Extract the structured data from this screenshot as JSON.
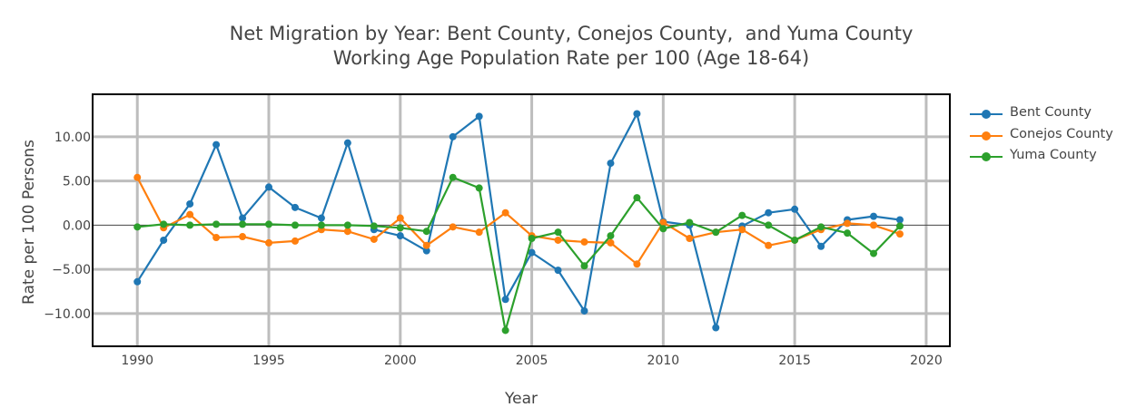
{
  "chart_data": {
    "type": "line",
    "title": "Net Migration by Year: Bent County, Conejos County,  and Yuma County",
    "subtitle": "Working Age Population Rate per 100 (Age 18-64)",
    "xlabel": "Year",
    "ylabel": "Rate per 100 Persons",
    "xlim": [
      1988.3,
      2020.9
    ],
    "ylim": [
      -13.7,
      14.8
    ],
    "xticks": [
      1990,
      1995,
      2000,
      2005,
      2010,
      2015,
      2020
    ],
    "xtick_labels": [
      "1990",
      "1995",
      "2000",
      "2005",
      "2010",
      "2015",
      "2020"
    ],
    "yticks": [
      10,
      5,
      0,
      -5,
      -10
    ],
    "ytick_labels": [
      "10.00",
      "5.00",
      "0.00",
      "−5.00",
      "−10.00"
    ],
    "grid": true,
    "legend_position": "top-right",
    "x": [
      1990,
      1991,
      1992,
      1993,
      1994,
      1995,
      1996,
      1997,
      1998,
      1999,
      2000,
      2001,
      2002,
      2003,
      2004,
      2005,
      2006,
      2007,
      2008,
      2009,
      2010,
      2011,
      2012,
      2013,
      2014,
      2015,
      2016,
      2017,
      2018,
      2019
    ],
    "series": [
      {
        "name": "Bent County",
        "color": "#1f77b4",
        "values": [
          -6.4,
          -1.7,
          2.4,
          9.1,
          0.8,
          4.3,
          2.0,
          0.8,
          9.3,
          -0.5,
          -1.2,
          -2.9,
          10.0,
          12.3,
          -8.4,
          -3.1,
          -5.1,
          -9.7,
          7.0,
          12.6,
          0.4,
          0.0,
          -11.6,
          -0.1,
          1.4,
          1.8,
          -2.4,
          0.6,
          1.0,
          0.6
        ]
      },
      {
        "name": "Conejos County",
        "color": "#ff7f0e",
        "values": [
          5.4,
          -0.3,
          1.2,
          -1.4,
          -1.3,
          -2.0,
          -1.8,
          -0.5,
          -0.7,
          -1.6,
          0.8,
          -2.3,
          -0.2,
          -0.8,
          1.4,
          -1.2,
          -1.7,
          -1.9,
          -2.0,
          -4.4,
          0.3,
          -1.5,
          -0.8,
          -0.5,
          -2.3,
          -1.7,
          -0.5,
          0.2,
          0.0,
          -1.0
        ]
      },
      {
        "name": "Yuma County",
        "color": "#2ca02c",
        "values": [
          -0.2,
          0.1,
          0.0,
          0.1,
          0.1,
          0.1,
          0.0,
          0.0,
          0.0,
          -0.1,
          -0.3,
          -0.7,
          5.4,
          4.2,
          -11.9,
          -1.5,
          -0.8,
          -4.6,
          -1.2,
          3.1,
          -0.4,
          0.3,
          -0.8,
          1.1,
          0.0,
          -1.7,
          -0.2,
          -0.9,
          -3.2,
          -0.1
        ]
      }
    ]
  }
}
